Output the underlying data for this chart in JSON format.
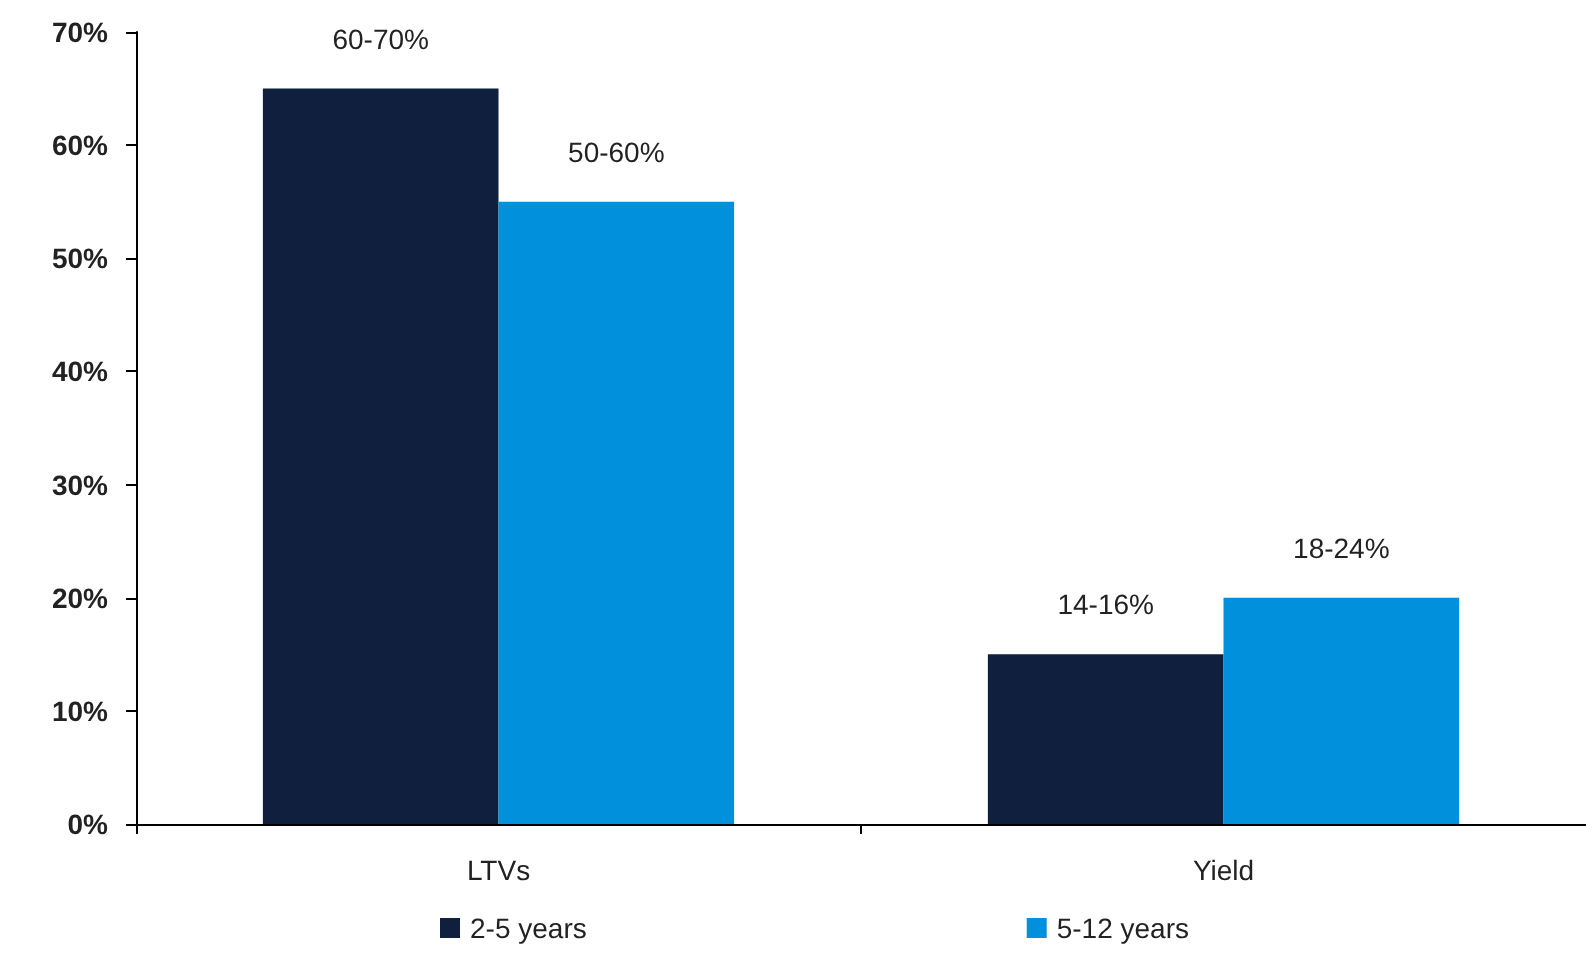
{
  "chart_data": {
    "type": "bar",
    "categories": [
      "LTVs",
      "Yield"
    ],
    "series": [
      {
        "name": "2-5 years",
        "color": "#0f1f3d",
        "values": [
          65,
          15
        ]
      },
      {
        "name": "5-12 years",
        "color": "#0090dc",
        "values": [
          55,
          20
        ]
      }
    ],
    "annotations": [
      {
        "text": "60-70%",
        "x": "LTVs",
        "y": 65
      },
      {
        "text": "50-60%",
        "x": "LTVs",
        "y": 55
      },
      {
        "text": "14-16%",
        "x": "Yield",
        "y": 15
      },
      {
        "text": "18-24%",
        "x": "Yield",
        "y": 20
      }
    ],
    "ylim": [
      0,
      70
    ],
    "yticks": [
      {
        "value": 0,
        "label": "0%"
      },
      {
        "value": 10,
        "label": "10%"
      },
      {
        "value": 20,
        "label": "20%"
      },
      {
        "value": 30,
        "label": "30%"
      },
      {
        "value": 40,
        "label": "40%"
      },
      {
        "value": 50,
        "label": "50%"
      },
      {
        "value": 60,
        "label": "60%"
      },
      {
        "value": 70,
        "label": "70%"
      }
    ],
    "grid": false,
    "legend": "bottom"
  }
}
